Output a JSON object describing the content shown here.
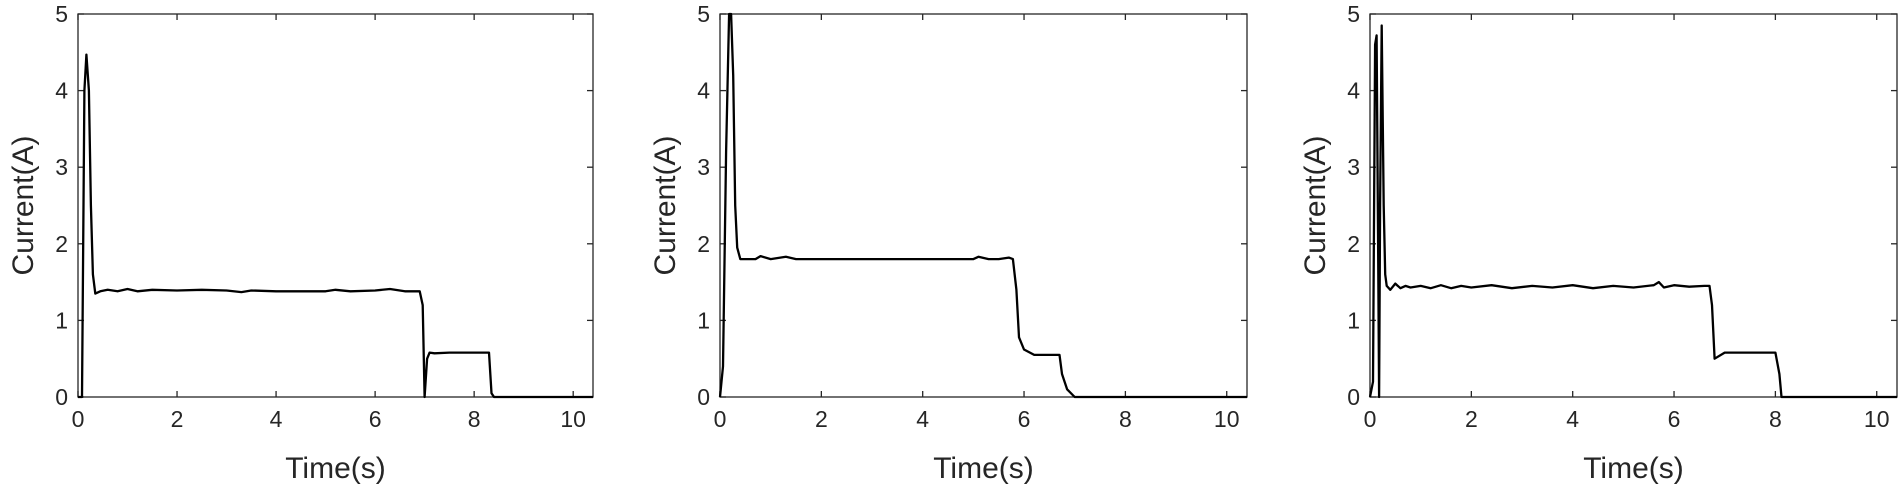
{
  "chart_data": [
    {
      "type": "line",
      "xlabel": "Time(s)",
      "ylabel": "Current(A)",
      "xlim": [
        0,
        10.4
      ],
      "ylim": [
        0,
        5
      ],
      "xticks": [
        0,
        2,
        4,
        6,
        8,
        10
      ],
      "yticks": [
        0,
        1,
        2,
        3,
        4,
        5
      ],
      "grid": false,
      "series": [
        {
          "color": "#000000",
          "x": [
            0,
            0.08,
            0.13,
            0.17,
            0.22,
            0.26,
            0.3,
            0.35,
            0.45,
            0.6,
            0.8,
            1.0,
            1.2,
            1.5,
            2.0,
            2.5,
            3.0,
            3.3,
            3.5,
            4.0,
            4.5,
            5.0,
            5.2,
            5.5,
            6.0,
            6.3,
            6.6,
            6.9,
            6.96,
            7.0,
            7.05,
            7.1,
            7.2,
            7.5,
            8.0,
            8.3,
            8.35,
            8.4,
            9.0,
            10.4
          ],
          "y": [
            0,
            0.0,
            4.0,
            4.47,
            4.0,
            2.5,
            1.6,
            1.35,
            1.38,
            1.4,
            1.38,
            1.41,
            1.38,
            1.4,
            1.39,
            1.4,
            1.39,
            1.37,
            1.39,
            1.38,
            1.38,
            1.38,
            1.4,
            1.38,
            1.39,
            1.41,
            1.38,
            1.38,
            1.2,
            0.0,
            0.5,
            0.58,
            0.57,
            0.58,
            0.58,
            0.58,
            0.05,
            0.0,
            0.0,
            0.0
          ]
        }
      ]
    },
    {
      "type": "line",
      "xlabel": "Time(s)",
      "ylabel": "Current(A)",
      "xlim": [
        0,
        10.4
      ],
      "ylim": [
        0,
        5
      ],
      "xticks": [
        0,
        2,
        4,
        6,
        8,
        10
      ],
      "yticks": [
        0,
        1,
        2,
        3,
        4,
        5
      ],
      "grid": false,
      "series": [
        {
          "color": "#000000",
          "x": [
            0,
            0.06,
            0.12,
            0.18,
            0.22,
            0.26,
            0.3,
            0.34,
            0.4,
            0.5,
            0.7,
            0.8,
            1.0,
            1.3,
            1.5,
            2.0,
            3.0,
            4.0,
            5.0,
            5.1,
            5.3,
            5.5,
            5.7,
            5.78,
            5.85,
            5.9,
            6.0,
            6.2,
            6.5,
            6.7,
            6.75,
            6.85,
            7.0,
            8.0,
            10.4
          ],
          "y": [
            0,
            0.4,
            3.2,
            5.0,
            5.0,
            4.2,
            2.5,
            1.95,
            1.8,
            1.8,
            1.8,
            1.84,
            1.8,
            1.83,
            1.8,
            1.8,
            1.8,
            1.8,
            1.8,
            1.83,
            1.8,
            1.8,
            1.82,
            1.8,
            1.4,
            0.78,
            0.62,
            0.55,
            0.55,
            0.55,
            0.3,
            0.1,
            0.0,
            0.0,
            0.0
          ]
        }
      ]
    },
    {
      "type": "line",
      "xlabel": "Time(s)",
      "ylabel": "Current(A)",
      "xlim": [
        0,
        10.4
      ],
      "ylim": [
        0,
        5
      ],
      "xticks": [
        0,
        2,
        4,
        6,
        8,
        10
      ],
      "yticks": [
        0,
        1,
        2,
        3,
        4,
        5
      ],
      "grid": false,
      "series": [
        {
          "color": "#000000",
          "x": [
            0,
            0.06,
            0.1,
            0.13,
            0.16,
            0.18,
            0.2,
            0.23,
            0.27,
            0.3,
            0.33,
            0.4,
            0.5,
            0.6,
            0.7,
            0.8,
            1.0,
            1.2,
            1.4,
            1.6,
            1.8,
            2.0,
            2.4,
            2.8,
            3.2,
            3.6,
            4.0,
            4.4,
            4.8,
            5.2,
            5.6,
            5.7,
            5.8,
            6.0,
            6.3,
            6.6,
            6.7,
            6.75,
            6.8,
            7.0,
            7.5,
            8.0,
            8.08,
            8.12,
            9.0,
            10.4
          ],
          "y": [
            0,
            0.2,
            4.6,
            4.72,
            2.0,
            0.0,
            2.5,
            4.85,
            2.5,
            1.6,
            1.45,
            1.4,
            1.48,
            1.42,
            1.45,
            1.43,
            1.45,
            1.42,
            1.46,
            1.42,
            1.45,
            1.43,
            1.46,
            1.42,
            1.45,
            1.43,
            1.46,
            1.42,
            1.45,
            1.43,
            1.46,
            1.5,
            1.43,
            1.46,
            1.44,
            1.45,
            1.45,
            1.2,
            0.5,
            0.58,
            0.58,
            0.58,
            0.3,
            0.0,
            0.0,
            0.0
          ]
        }
      ]
    }
  ]
}
